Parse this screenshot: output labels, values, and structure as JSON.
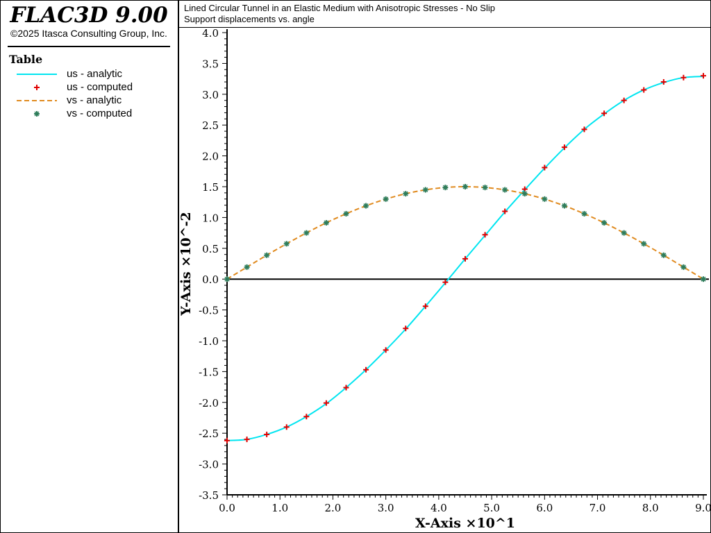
{
  "app": {
    "title": "FLAC3D 9.00",
    "copyright": "©2025 Itasca Consulting Group, Inc."
  },
  "legend": {
    "heading": "Table",
    "items": [
      {
        "label": "us - analytic",
        "style": "line",
        "color": "#00e5f0"
      },
      {
        "label": "us - computed",
        "style": "plus",
        "color": "#e00000"
      },
      {
        "label": "vs - analytic",
        "style": "dashed",
        "color": "#e08a1e"
      },
      {
        "label": "vs - computed",
        "style": "star",
        "color": "#2e7d5b"
      }
    ]
  },
  "plot": {
    "title_line1": "Lined Circular Tunnel in an Elastic Medium with Anisotropic Stresses - No Slip",
    "title_line2": "Support displacements vs. angle"
  },
  "chart_data": {
    "type": "line",
    "xlabel": "X-Axis ×10^1",
    "ylabel": "Y-Axis ×10^-2",
    "xlim": [
      0,
      9
    ],
    "ylim": [
      -3.5,
      4.0
    ],
    "x_ticks": [
      "0.0",
      "1.0",
      "2.0",
      "3.0",
      "4.0",
      "5.0",
      "6.0",
      "7.0",
      "8.0",
      "9.0"
    ],
    "y_ticks": [
      "4.0",
      "3.5",
      "3.0",
      "2.5",
      "2.0",
      "1.5",
      "1.0",
      "0.5",
      "0.0",
      "-0.5",
      "-1.0",
      "-1.5",
      "-2.0",
      "-2.5",
      "-3.0",
      "-3.5"
    ],
    "zero_line": true,
    "grid": false,
    "series": [
      {
        "name": "us - analytic",
        "style": "line",
        "color": "#00e5f0",
        "x": [
          0.0,
          0.375,
          0.75,
          1.125,
          1.5,
          1.875,
          2.25,
          2.625,
          3.0,
          3.375,
          3.75,
          4.125,
          4.5,
          4.875,
          5.25,
          5.625,
          6.0,
          6.375,
          6.75,
          7.125,
          7.5,
          7.875,
          8.25,
          8.625,
          9.0
        ],
        "y": [
          -2.62,
          -2.6,
          -2.52,
          -2.4,
          -2.23,
          -2.02,
          -1.76,
          -1.47,
          -1.15,
          -0.81,
          -0.44,
          -0.06,
          0.33,
          0.71,
          1.09,
          1.45,
          1.8,
          2.13,
          2.43,
          2.68,
          2.9,
          3.07,
          3.19,
          3.27,
          3.29
        ]
      },
      {
        "name": "us - computed",
        "style": "plus",
        "color": "#e00000",
        "x": [
          0.0,
          0.375,
          0.75,
          1.125,
          1.5,
          1.875,
          2.25,
          2.625,
          3.0,
          3.375,
          3.75,
          4.125,
          4.5,
          4.875,
          5.25,
          5.625,
          6.0,
          6.375,
          6.75,
          7.125,
          7.5,
          7.875,
          8.25,
          8.625,
          9.0
        ],
        "y": [
          -2.62,
          -2.6,
          -2.52,
          -2.4,
          -2.23,
          -2.01,
          -1.76,
          -1.47,
          -1.15,
          -0.8,
          -0.44,
          -0.05,
          0.33,
          0.72,
          1.1,
          1.46,
          1.81,
          2.14,
          2.43,
          2.69,
          2.9,
          3.07,
          3.2,
          3.27,
          3.3
        ]
      },
      {
        "name": "vs - analytic",
        "style": "dashed",
        "color": "#e08a1e",
        "x": [
          0.0,
          0.375,
          0.75,
          1.125,
          1.5,
          1.875,
          2.25,
          2.625,
          3.0,
          3.375,
          3.75,
          4.125,
          4.5,
          4.875,
          5.25,
          5.625,
          6.0,
          6.375,
          6.75,
          7.125,
          7.5,
          7.875,
          8.25,
          8.625,
          9.0
        ],
        "y": [
          0.0,
          0.195,
          0.388,
          0.574,
          0.75,
          0.914,
          1.061,
          1.19,
          1.299,
          1.386,
          1.449,
          1.487,
          1.5,
          1.487,
          1.449,
          1.386,
          1.299,
          1.19,
          1.061,
          0.914,
          0.75,
          0.574,
          0.388,
          0.195,
          0.0
        ]
      },
      {
        "name": "vs - computed",
        "style": "star",
        "color": "#2e7d5b",
        "x": [
          0.0,
          0.375,
          0.75,
          1.125,
          1.5,
          1.875,
          2.25,
          2.625,
          3.0,
          3.375,
          3.75,
          4.125,
          4.5,
          4.875,
          5.25,
          5.625,
          6.0,
          6.375,
          6.75,
          7.125,
          7.5,
          7.875,
          8.25,
          8.625,
          9.0
        ],
        "y": [
          0.0,
          0.195,
          0.388,
          0.574,
          0.75,
          0.914,
          1.061,
          1.19,
          1.299,
          1.386,
          1.449,
          1.487,
          1.5,
          1.487,
          1.449,
          1.386,
          1.299,
          1.19,
          1.061,
          0.914,
          0.75,
          0.574,
          0.388,
          0.195,
          0.0
        ]
      }
    ]
  }
}
